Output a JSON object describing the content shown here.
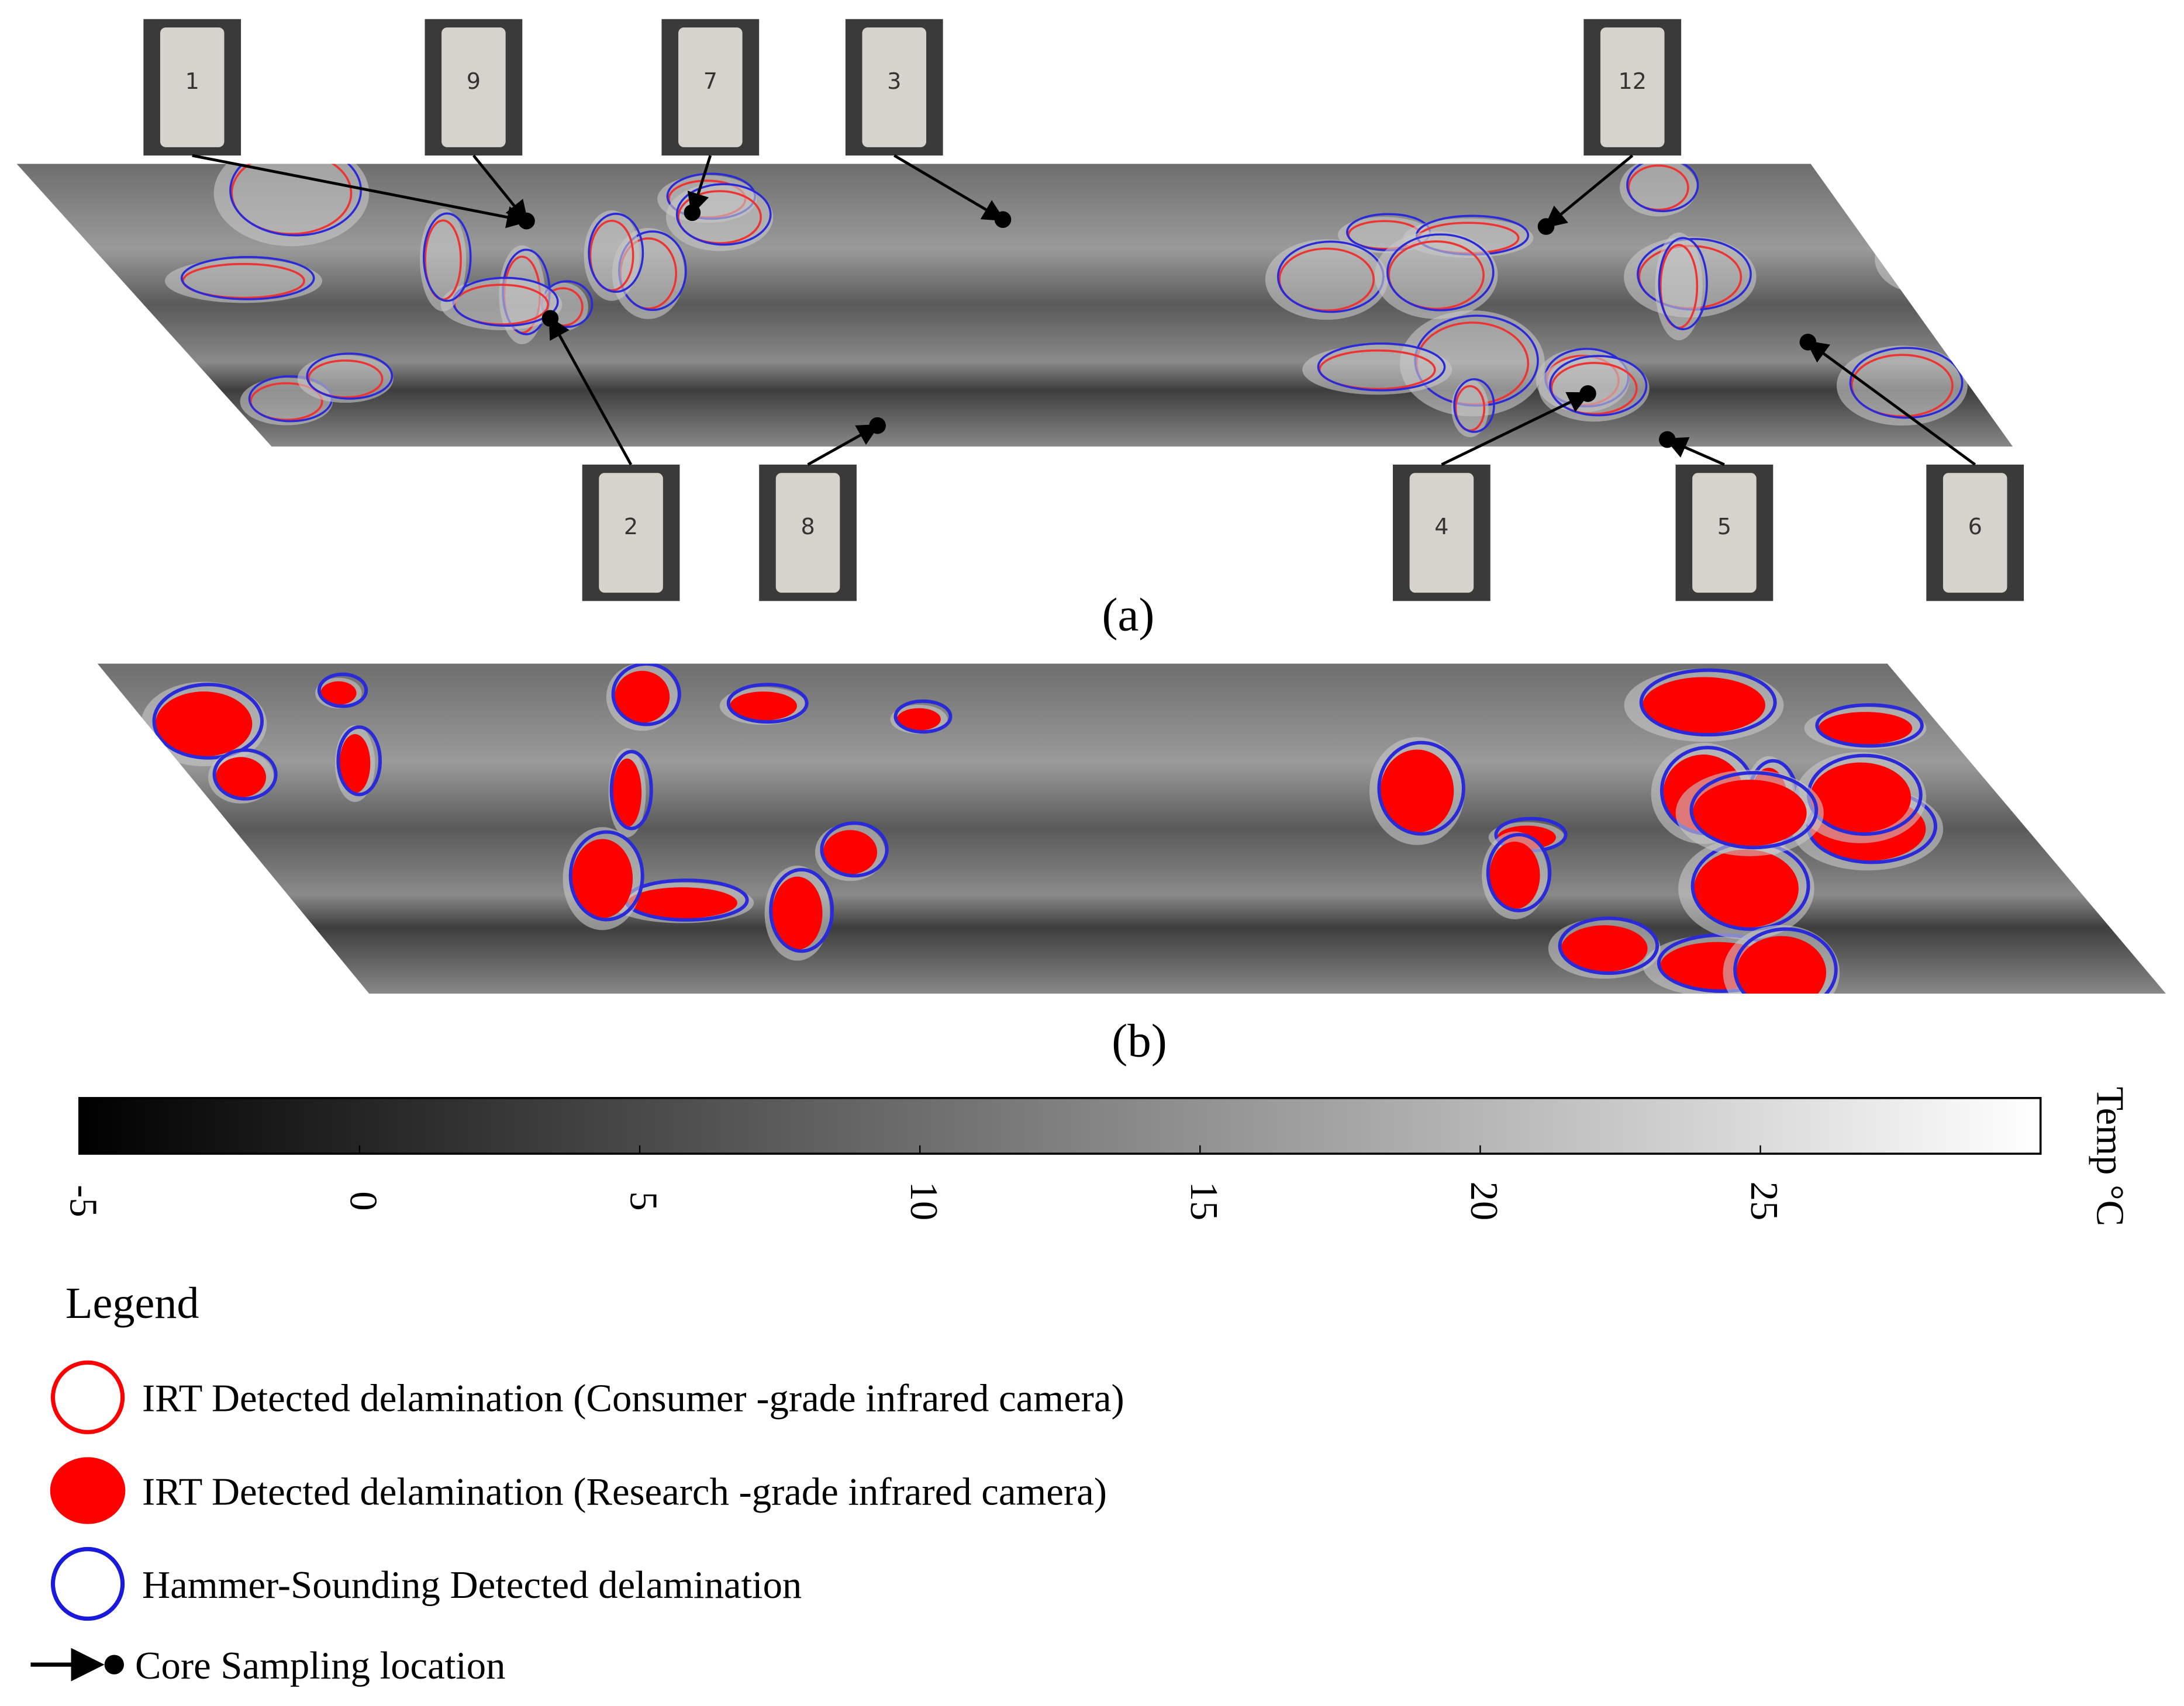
{
  "panels": {
    "a": "(a)",
    "b": "(b)"
  },
  "cores_top": [
    "1",
    "9",
    "7",
    "3",
    "12"
  ],
  "cores_bottom": [
    "2",
    "8",
    "4",
    "5",
    "6"
  ],
  "colorbar": {
    "label": "Temp °C",
    "lim": [
      -5,
      30
    ],
    "ticks": [
      -5,
      0,
      5,
      10,
      15,
      20,
      25
    ]
  },
  "legend": {
    "title": "Legend",
    "items": [
      "IRT Detected delamination (Consumer  -grade infrared camera)",
      "IRT Detected delamination (Research  -grade infrared camera)",
      "Hammer-Sounding Detected delamination",
      "Core Sampling location"
    ]
  }
}
